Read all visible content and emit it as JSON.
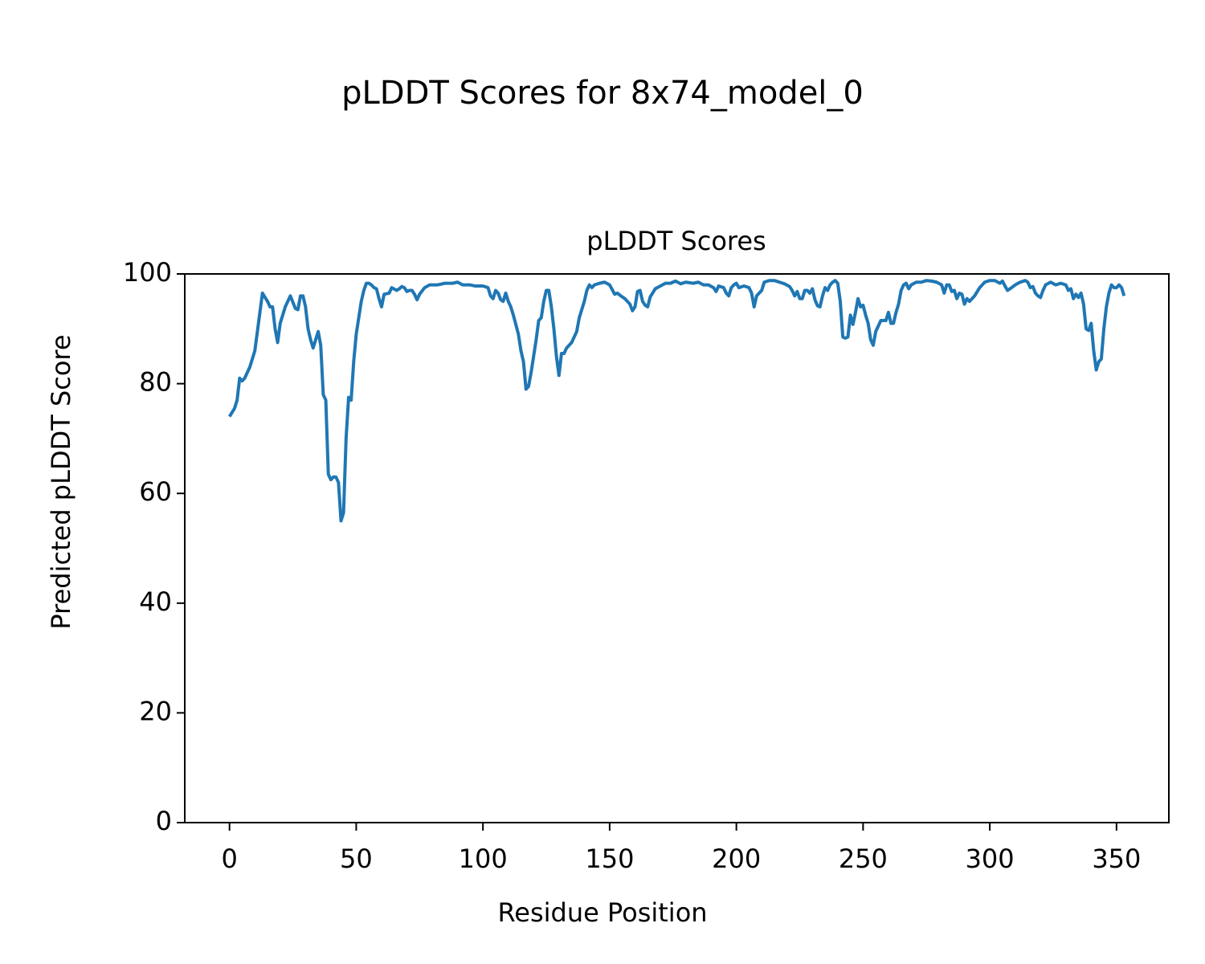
{
  "chart_data": {
    "type": "line",
    "suptitle": "pLDDT Scores for 8x74_model_0",
    "title": "pLDDT Scores",
    "xlabel": "Residue Position",
    "ylabel": "Predicted pLDDT Score",
    "xlim": [
      -17.65,
      370.65
    ],
    "ylim": [
      0,
      100
    ],
    "xticks": [
      0,
      50,
      100,
      150,
      200,
      250,
      300,
      350
    ],
    "yticks": [
      0,
      20,
      40,
      60,
      80,
      100
    ],
    "grid": false,
    "series": [
      {
        "name": "pLDDT",
        "color": "#1f77b4",
        "x": [
          0,
          2,
          3,
          4,
          5,
          6,
          8,
          10,
          12,
          13,
          15,
          16,
          17,
          18,
          19,
          20,
          22,
          24,
          26,
          27,
          28,
          29,
          30,
          31,
          32,
          33,
          35,
          36,
          37,
          38,
          39,
          40,
          41,
          42,
          43,
          44,
          45,
          46,
          47,
          48,
          49,
          50,
          52,
          53,
          54,
          55,
          56,
          57,
          58,
          59,
          60,
          61,
          63,
          64,
          66,
          67,
          68,
          69,
          70,
          71,
          72,
          73,
          74,
          75,
          77,
          79,
          82,
          85,
          88,
          90,
          92,
          95,
          97,
          100,
          102,
          103,
          104,
          105,
          106,
          107,
          108,
          109,
          110,
          111,
          112,
          114,
          115,
          116,
          117,
          118,
          119,
          120,
          121,
          122,
          123,
          124,
          125,
          126,
          127,
          128,
          129,
          130,
          131,
          132,
          133,
          135,
          137,
          138,
          140,
          141,
          142,
          143,
          144,
          146,
          148,
          150,
          152,
          153,
          155,
          156,
          158,
          159,
          160,
          161,
          162,
          163,
          164,
          165,
          166,
          168,
          170,
          172,
          174,
          176,
          178,
          180,
          183,
          185,
          187,
          189,
          191,
          192,
          193,
          195,
          196,
          197,
          198,
          199,
          200,
          201,
          203,
          205,
          206,
          207,
          208,
          209,
          210,
          211,
          213,
          215,
          217,
          219,
          221,
          222,
          223,
          224,
          225,
          226,
          227,
          228,
          229,
          230,
          231,
          232,
          233,
          234,
          235,
          236,
          237,
          238,
          239,
          240,
          241,
          242,
          243,
          244,
          245,
          246,
          247,
          248,
          249,
          250,
          251,
          252,
          253,
          254,
          255,
          256,
          257,
          258,
          259,
          260,
          261,
          262,
          263,
          264,
          265,
          266,
          267,
          268,
          269,
          271,
          273,
          275,
          277,
          279,
          281,
          282,
          283,
          284,
          285,
          286,
          287,
          288,
          289,
          290,
          291,
          292,
          294,
          296,
          298,
          300,
          302,
          304,
          305,
          306,
          307,
          308,
          310,
          312,
          314,
          315,
          316,
          317,
          318,
          319,
          320,
          321,
          322,
          324,
          326,
          328,
          330,
          331,
          332,
          333,
          334,
          335,
          336,
          337,
          338,
          339,
          340,
          341,
          342,
          343,
          344,
          345,
          346,
          347,
          348,
          349,
          350,
          351,
          352,
          353
        ],
        "values": [
          74,
          75.5,
          77,
          81,
          80.5,
          81,
          83,
          86,
          93,
          96.5,
          95,
          94,
          94,
          90,
          87.5,
          91,
          94,
          96,
          93.7,
          93.5,
          96,
          96,
          94,
          90,
          88,
          86.5,
          89.5,
          87,
          78,
          77,
          63.5,
          62.5,
          63,
          63,
          62,
          55,
          56.5,
          70,
          77.5,
          77,
          84,
          89,
          95,
          97,
          98.3,
          98.3,
          98,
          97.5,
          97.3,
          95.5,
          94,
          96.3,
          96.5,
          97.5,
          97,
          97.3,
          97.7,
          97.5,
          96.8,
          97,
          97,
          96.3,
          95.3,
          96.3,
          97.5,
          98,
          98,
          98.3,
          98.3,
          98.5,
          98,
          98,
          97.8,
          97.8,
          97.5,
          96,
          95.5,
          97,
          96.5,
          95.3,
          95,
          96.5,
          95,
          94,
          92.5,
          89,
          86,
          84,
          79,
          79.5,
          82,
          85,
          88,
          91.5,
          92,
          95,
          97,
          97,
          94,
          90,
          85,
          81.5,
          85.5,
          85.5,
          86.5,
          87.5,
          89.5,
          92,
          95,
          97,
          98,
          97.5,
          98,
          98.3,
          98.5,
          98,
          96.3,
          96.5,
          95.8,
          95.5,
          94.5,
          93.3,
          94,
          96.8,
          97,
          95,
          94.3,
          94,
          95.8,
          97.3,
          97.8,
          98.3,
          98.3,
          98.7,
          98.2,
          98.5,
          98.3,
          98.5,
          98,
          98,
          97.5,
          96.8,
          97.8,
          97.5,
          96.5,
          96,
          97.5,
          98,
          98.3,
          97.5,
          97.8,
          97.5,
          96.5,
          94,
          96,
          96.5,
          97,
          98.5,
          98.8,
          98.8,
          98.5,
          98.2,
          97.7,
          97,
          96,
          96.8,
          95.5,
          95.5,
          97,
          97,
          96.5,
          97.3,
          95.3,
          94.2,
          94,
          96,
          97.5,
          97,
          98,
          98.5,
          98.8,
          98.3,
          95,
          88.5,
          88.3,
          88.5,
          92.5,
          90.8,
          93,
          95.5,
          94,
          94.3,
          92.5,
          91,
          88,
          87,
          89.5,
          90.5,
          91.5,
          91.5,
          91.5,
          93,
          91,
          91,
          93,
          94.5,
          97,
          98,
          98.3,
          97.3,
          98,
          98.5,
          98.5,
          98.8,
          98.7,
          98.5,
          98,
          96.5,
          98,
          98,
          96.8,
          97,
          95.5,
          96.5,
          96.3,
          94.5,
          95.5,
          95,
          96,
          97.5,
          98.5,
          98.8,
          98.8,
          98.3,
          98.7,
          97.8,
          97,
          97.3,
          98,
          98.5,
          98.8,
          98.5,
          97.5,
          97.7,
          96.5,
          96,
          95.7,
          97,
          98,
          98.5,
          98,
          98.3,
          98,
          97,
          97.3,
          95.5,
          96.3,
          95.7,
          96.5,
          94.5,
          90,
          89.7,
          91,
          86,
          82.5,
          84,
          84.5,
          90,
          94,
          96.5,
          98,
          97.5,
          97.5,
          98,
          97.5,
          96
        ]
      }
    ]
  }
}
